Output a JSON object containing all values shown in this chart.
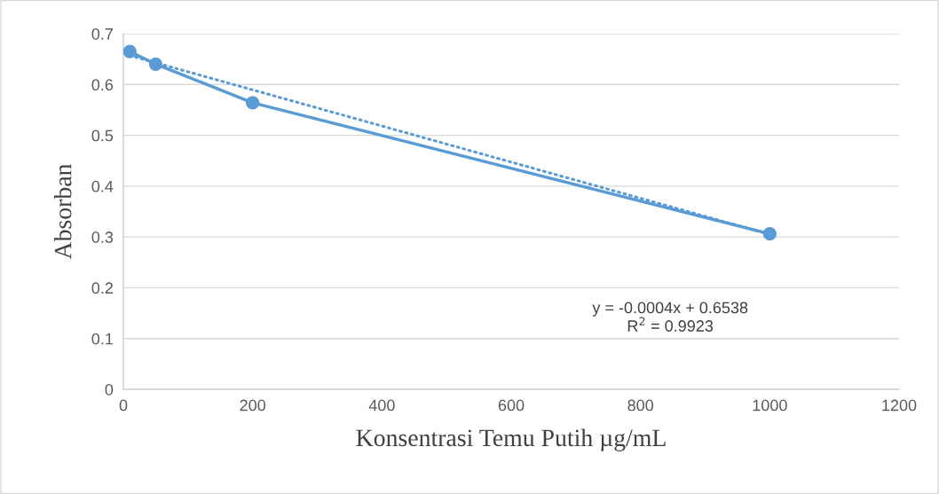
{
  "chart_data": {
    "type": "line",
    "xlabel": "Konsentrasi Temu Putih µg/mL",
    "ylabel": "Absorban",
    "x": [
      10,
      50,
      200,
      1000
    ],
    "series": [
      {
        "color": "#5b9bd5",
        "marker": "circle",
        "line_style": "solid",
        "values": [
          0.665,
          0.64,
          0.564,
          0.306
        ]
      },
      {
        "color": "#5b9bd5",
        "marker": "none",
        "line_style": "dotted",
        "x": [
          10,
          1000
        ],
        "values": [
          0.657,
          0.305
        ]
      }
    ],
    "xlim": [
      0,
      1200
    ],
    "xticks": [
      0,
      200,
      400,
      600,
      800,
      1000,
      1200
    ],
    "ylim": [
      0,
      0.7
    ],
    "yticks": [
      {
        "value": 0,
        "label": "0"
      },
      0.1,
      0.2,
      0.3,
      0.4,
      0.5,
      0.6,
      0.7
    ],
    "grid": "y",
    "legend": false,
    "annotations": [
      "y = -0.0004x + 0.6538\nR$^{2}$ = 0.9923"
    ]
  }
}
